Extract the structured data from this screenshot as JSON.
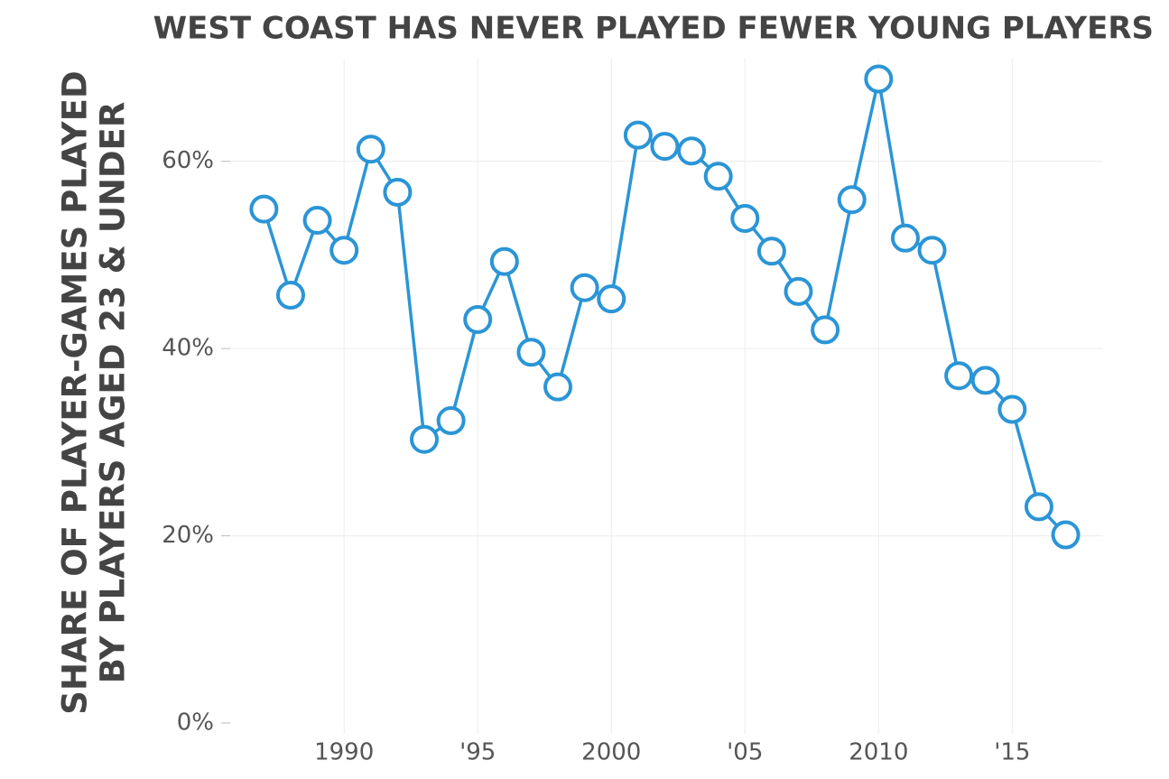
{
  "chart_data": {
    "type": "line",
    "title": "WEST COAST HAS NEVER PLAYED FEWER YOUNG PLAYERS",
    "y_label": [
      "SHARE OF PLAYER-GAMES PLAYED",
      "BY PLAYERS AGED 23 & UNDER"
    ],
    "x": [
      1987,
      1988,
      1989,
      1990,
      1991,
      1992,
      1993,
      1994,
      1995,
      1996,
      1997,
      1998,
      1999,
      2000,
      2001,
      2002,
      2003,
      2004,
      2005,
      2006,
      2007,
      2008,
      2009,
      2010,
      2011,
      2012,
      2013,
      2014,
      2015,
      2016,
      2017
    ],
    "series": [
      {
        "color": "#2b95d6",
        "values": [
          54.9,
          45.7,
          53.7,
          50.5,
          61.3,
          56.7,
          30.3,
          32.3,
          43.1,
          49.3,
          39.6,
          35.9,
          46.5,
          45.3,
          62.8,
          61.6,
          61.1,
          58.4,
          53.9,
          50.4,
          46.1,
          42.0,
          55.9,
          68.8,
          51.8,
          50.5,
          37.1,
          36.6,
          33.5,
          23.1,
          20.1
        ]
      }
    ],
    "xlim": [
      1985.4,
      2018.4
    ],
    "xticks": [
      1990,
      {
        "value": 1995,
        "label": "'95"
      },
      2000,
      {
        "value": 2005,
        "label": "'05"
      },
      2010,
      {
        "value": 2015,
        "label": "'15"
      }
    ],
    "ylim": [
      0,
      70
    ],
    "yticks": [
      {
        "value": 0,
        "label": "0%"
      },
      {
        "value": 20,
        "label": "20%"
      },
      {
        "value": 40,
        "label": "40%"
      },
      {
        "value": 60,
        "label": "60%"
      }
    ],
    "grid": true
  }
}
